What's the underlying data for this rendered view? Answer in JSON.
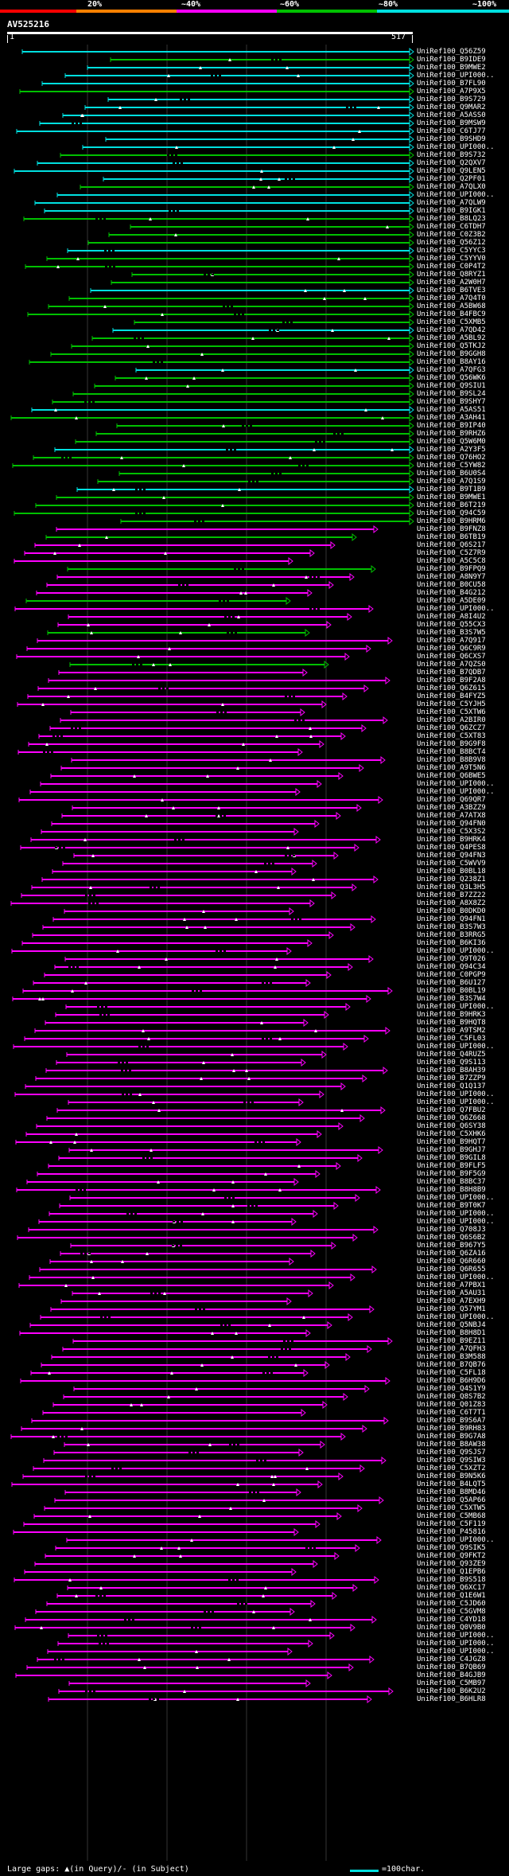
{
  "legend": {
    "labels": [
      "20%",
      "~40%",
      "~60%",
      "~80%",
      "~100%"
    ],
    "colors": [
      "#ff0000",
      "#ff8000",
      "#ff00ff",
      "#00c000",
      "#00e0e0"
    ]
  },
  "query": {
    "id": "AV525216",
    "start_label": "1",
    "end_label": "517"
  },
  "footer": {
    "note": "Large gaps: ▲(in Query)/- (in Subject)",
    "scale_label": "=100char.",
    "scale_color": "#00e0e0"
  },
  "hits": [
    "UniRef100_Q56Z59",
    "UniRef100_B9IDE9",
    "UniRef100_B9MWE2",
    "UniRef100_UPI000..",
    "UniRef100_B7FL90",
    "UniRef100_A7P9X5",
    "UniRef100_B9S729",
    "UniRef100_Q9MAR2",
    "UniRef100_A5ASS0",
    "UniRef100_B9MSW9",
    "UniRef100_C6TJ77",
    "UniRef100_B9SHD9",
    "UniRef100_UPI000..",
    "UniRef100_B9S732",
    "UniRef100_Q2QXV7",
    "UniRef100_Q9LEN5",
    "UniRef100_Q2PF01",
    "UniRef100_A7QLX0",
    "UniRef100_UPI000..",
    "UniRef100_A7QLW9",
    "UniRef100_B9IGK1",
    "UniRef100_B8LQ23",
    "UniRef100_C6TDH7",
    "UniRef100_C0Z3B2",
    "UniRef100_Q56Z12",
    "UniRef100_C5YYC3",
    "UniRef100_C5YYV0",
    "UniRef100_C0P4T2",
    "UniRef100_Q8RYZ1",
    "UniRef100_A2W0H7",
    "UniRef100_B6TVE3",
    "UniRef100_A7Q4T0",
    "UniRef100_A5BW68",
    "UniRef100_B4FBC9",
    "UniRef100_C5XMB5",
    "UniRef100_A7QD42",
    "UniRef100_A5BL92",
    "UniRef100_Q5TKJ2",
    "UniRef100_B9GGH8",
    "UniRef100_B8AY16",
    "UniRef100_A7QFG3",
    "UniRef100_Q56WK6",
    "UniRef100_Q9SIU1",
    "UniRef100_B9SL24",
    "UniRef100_B9SHY7",
    "UniRef100_A5AS51",
    "UniRef100_A3AH41",
    "UniRef100_B9IP40",
    "UniRef100_B9RHZ6",
    "UniRef100_Q5W6M0",
    "UniRef100_A2Y3F5",
    "UniRef100_Q76HO2",
    "UniRef100_C5YW82",
    "UniRef100_B6U0S4",
    "UniRef100_A7Q1S9",
    "UniRef100_B9T1B9",
    "UniRef100_B9MWE1",
    "UniRef100_B6T219",
    "UniRef100_Q94C59",
    "UniRef100_B9HRM6",
    "UniRef100_B9FNZ8",
    "UniRef100_B6TB19",
    "UniRef100_Q6S217",
    "UniRef100_C5Z7R9",
    "UniRef100_A5C5C8",
    "UniRef100_B9FPQ9",
    "UniRef100_A8N9Y7",
    "UniRef100_B0CU58",
    "UniRef100_B4G212",
    "UniRef100_A5DE09",
    "UniRef100_UPI000..",
    "UniRef100_A8I4U2",
    "UniRef100_Q55CX3",
    "UniRef100_B3S7W5",
    "UniRef100_A7Q917",
    "UniRef100_Q6C9R9",
    "UniRef100_Q6CXS7",
    "UniRef100_A7QZS0",
    "UniRef100_B7QDB7",
    "UniRef100_B9F2A8",
    "UniRef100_Q6Z615",
    "UniRef100_B4FYZ5",
    "UniRef100_C5YJH5",
    "UniRef100_C5XTW6",
    "UniRef100_A2BIR0",
    "UniRef100_Q6ZCZ7",
    "UniRef100_C5XT83",
    "UniRef100_B9G9F8",
    "UniRef100_B8BCT4",
    "UniRef100_B8B9V8",
    "UniRef100_A9T5N6",
    "UniRef100_Q6BWE5",
    "UniRef100_UPI000..",
    "UniRef100_UPI000..",
    "UniRef100_Q69QR7",
    "UniRef100_A3BZZ9",
    "UniRef100_A7ATX8",
    "UniRef100_Q94FN0",
    "UniRef100_C5X3S2",
    "UniRef100_B9HRK4",
    "UniRef100_Q4PES8",
    "UniRef100_Q94FN3",
    "UniRef100_C5WVV9",
    "UniRef100_B0BL18",
    "UniRef100_Q238Z1",
    "UniRef100_Q3L3H5",
    "UniRef100_B7ZZ22",
    "UniRef100_A8X8Z2",
    "UniRef100_B0DKD0",
    "UniRef100_Q94FN1",
    "UniRef100_B3S7W3",
    "UniRef100_B3RRG5",
    "UniRef100_B6KI36",
    "UniRef100_UPI000..",
    "UniRef100_Q9T026",
    "UniRef100_Q94C34",
    "UniRef100_C0PGP9",
    "UniRef100_B6U127",
    "UniRef100_B0BL19",
    "UniRef100_B3S7W4",
    "UniRef100_UPI000..",
    "UniRef100_B9HRK3",
    "UniRef100_B9HQT8",
    "UniRef100_A9TSM2",
    "UniRef100_C5FL03",
    "UniRef100_UPI000..",
    "UniRef100_Q4RUZ5",
    "UniRef100_Q9S113",
    "UniRef100_B8AH39",
    "UniRef100_B7ZZP9",
    "UniRef100_Q1Q137",
    "UniRef100_UPI000..",
    "UniRef100_UPI000..",
    "UniRef100_Q7FBU2",
    "UniRef100_Q6Z668",
    "UniRef100_Q6SY38",
    "UniRef100_C5XHK6",
    "UniRef100_B9HQT7",
    "UniRef100_B9GHJ7",
    "UniRef100_B9GIL8",
    "UniRef100_B9FLF5",
    "UniRef100_B9F5G9",
    "UniRef100_B8BC37",
    "UniRef100_B8H8B9",
    "UniRef100_UPI000..",
    "UniRef100_B9T0K7",
    "UniRef100_UPI000..",
    "UniRef100_UPI000..",
    "UniRef100_Q708J3",
    "UniRef100_Q6S6B2",
    "UniRef100_B967Y5",
    "UniRef100_Q6ZA16",
    "UniRef100_Q6R660",
    "UniRef100_Q6R655",
    "UniRef100_UPI000..",
    "UniRef100_A7PBX1",
    "UniRef100_A5AU31",
    "UniRef100_A7EXH9",
    "UniRef100_Q57YM1",
    "UniRef100_UPI000..",
    "UniRef100_Q5NBJ4",
    "UniRef100_B8H8D1",
    "UniRef100_B9EZ11",
    "UniRef100_A7QFH3",
    "UniRef100_B3M588",
    "UniRef100_B7QB76",
    "UniRef100_C5FL18",
    "UniRef100_B6H9D6",
    "UniRef100_Q4S1Y9",
    "UniRef100_Q8S7B2",
    "UniRef100_Q01Z83",
    "UniRef100_C6T7T1",
    "UniRef100_B9S6A7",
    "UniRef100_B9RH83",
    "UniRef100_B9G7A8",
    "UniRef100_B8AW38",
    "UniRef100_Q9SJS7",
    "UniRef100_Q9SIW3",
    "UniRef100_C5XZT2",
    "UniRef100_B9N5K6",
    "UniRef100_B4LQT5",
    "UniRef100_B8MD46",
    "UniRef100_Q5AP66",
    "UniRef100_C5XTW5",
    "UniRef100_C5MB68",
    "UniRef100_C5F119",
    "UniRef100_P45816",
    "UniRef100_UPI000..",
    "UniRef100_Q9SIK5",
    "UniRef100_Q9FKT2",
    "UniRef100_Q93ZE9",
    "UniRef100_Q1EPB6",
    "UniRef100_B9S518",
    "UniRef100_Q6XC17",
    "UniRef100_Q1E6W1",
    "UniRef100_C5JD60",
    "UniRef100_C5GVM8",
    "UniRef100_C4YD18",
    "UniRef100_Q0V9B0",
    "UniRef100_UPI000..",
    "UniRef100_UPI000..",
    "UniRef100_UPI000..",
    "UniRef100_C4JGZ8",
    "UniRef100_B7QB69",
    "UniRef100_B4GJB9",
    "UniRef100_C5MB97",
    "UniRef100_B6K2U2",
    "UniRef100_B6HLR8"
  ]
}
